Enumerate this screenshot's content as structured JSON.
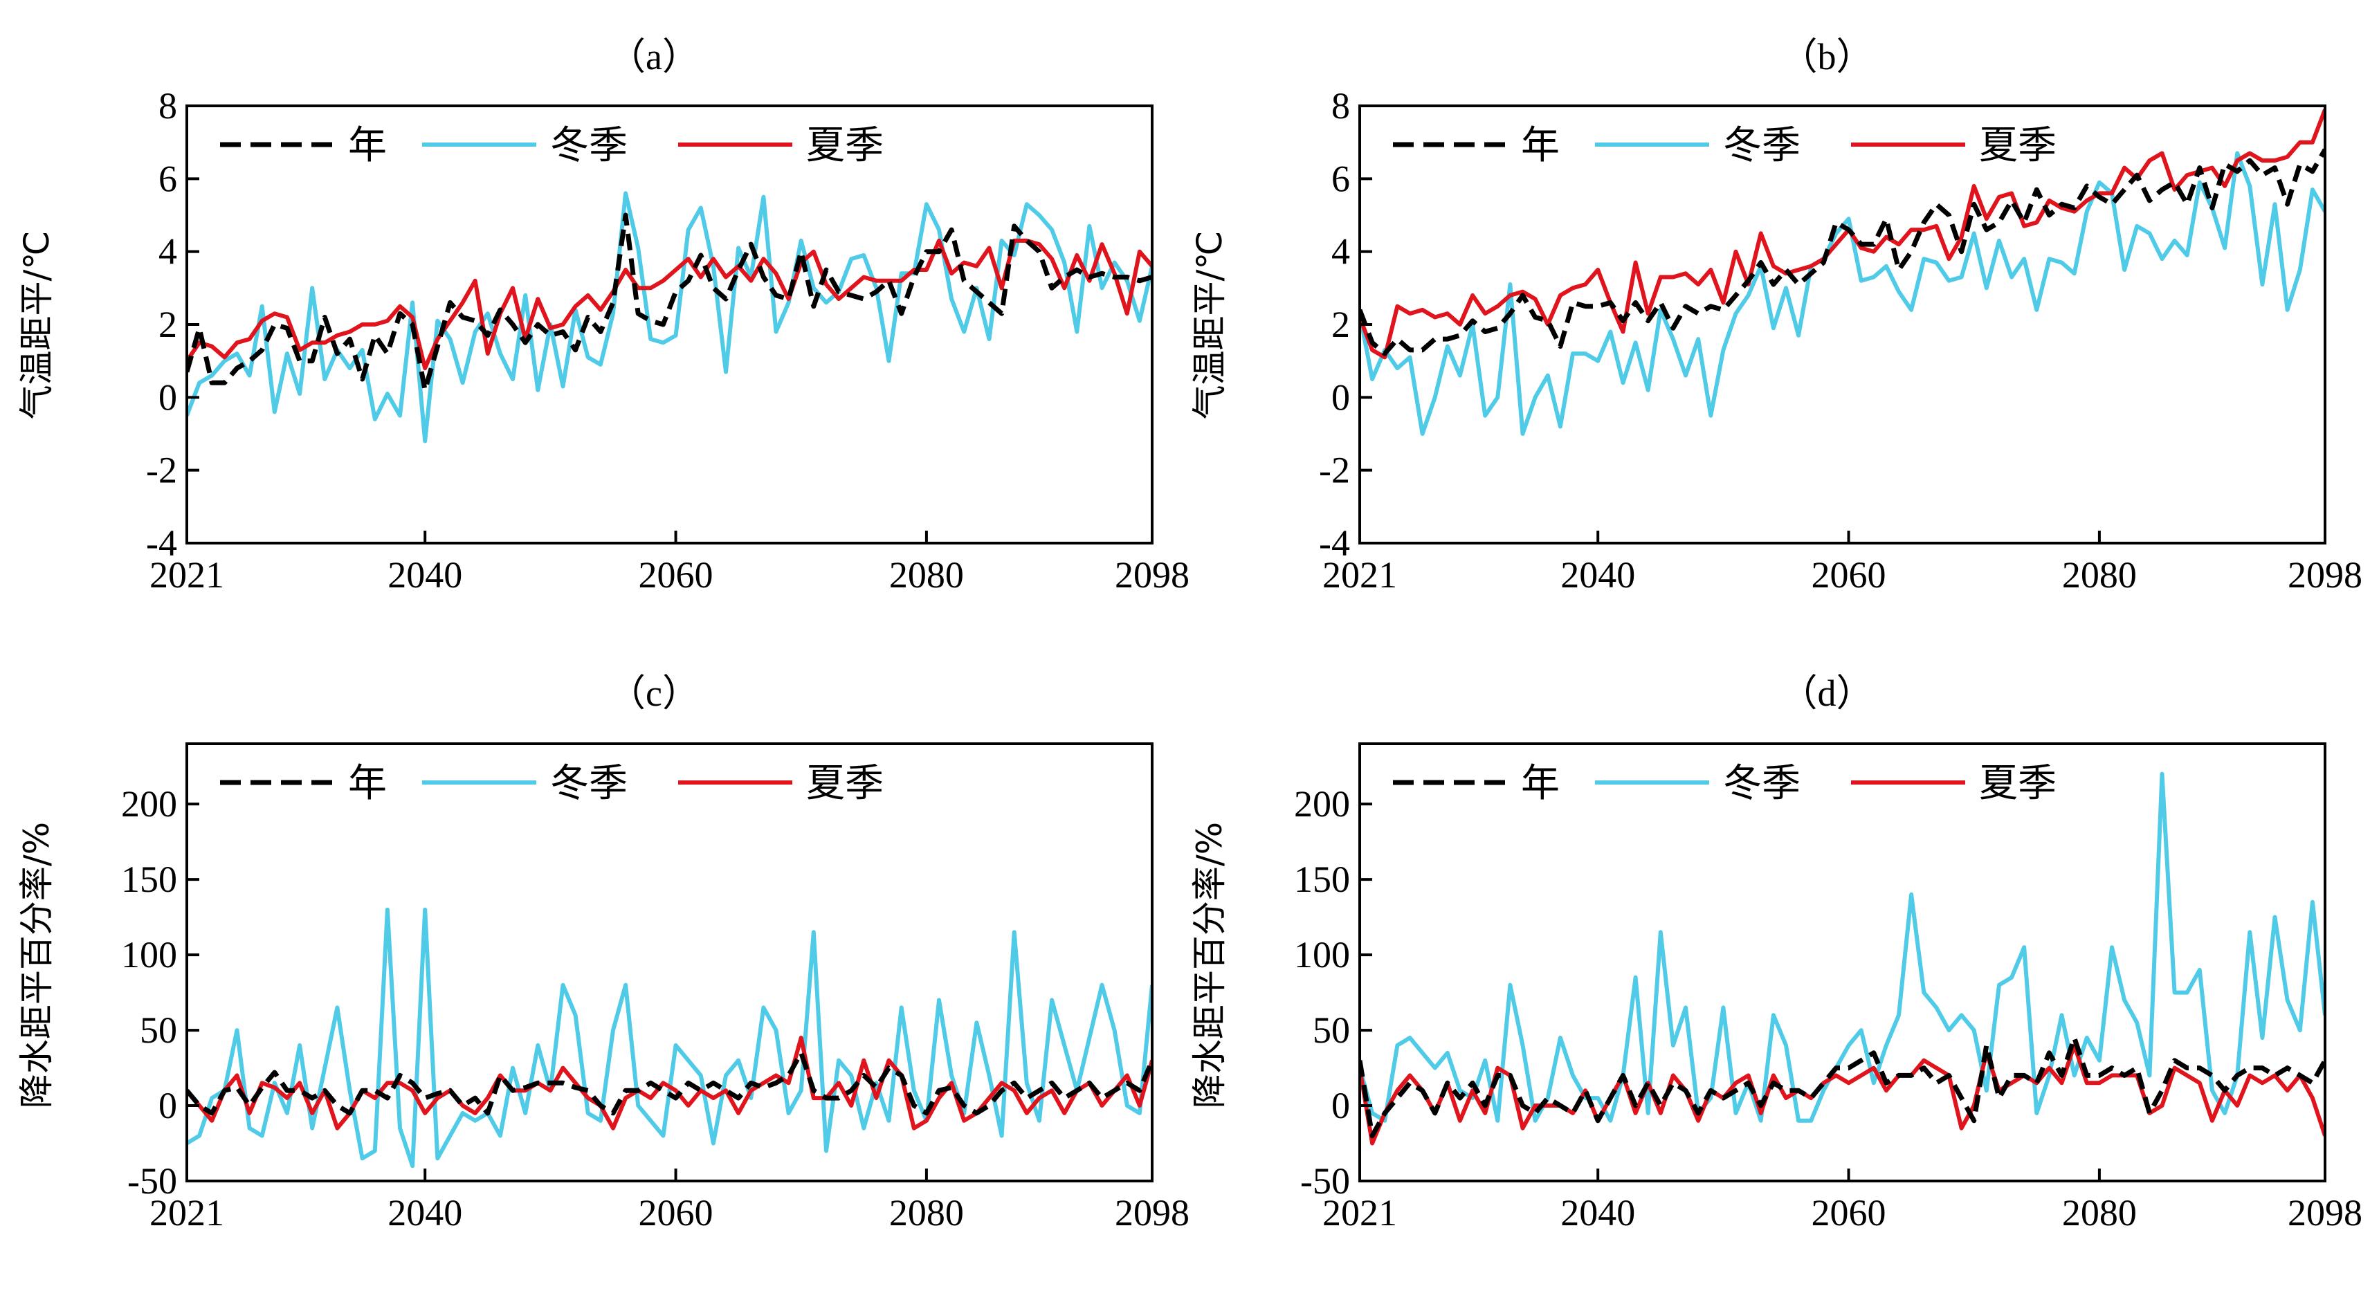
{
  "colors": {
    "annual": "#000000",
    "winter": "#4fcbe8",
    "summer": "#e0141c"
  },
  "chart_data": [
    {
      "type": "line",
      "title": "（a）",
      "ylabel": "气温距平/℃",
      "xlabel": "",
      "xlim": [
        2021,
        2098
      ],
      "ylim": [
        -4,
        8
      ],
      "xticks": [
        2021,
        2040,
        2060,
        2080,
        2098
      ],
      "yticks": [
        -4,
        -2,
        0,
        2,
        4,
        6,
        8
      ],
      "legend_position": "top-left",
      "x_start": 2021,
      "series": [
        {
          "name": "年",
          "key": "annual",
          "style": "dashed",
          "values": [
            0.7,
            1.9,
            0.4,
            0.4,
            0.8,
            1.0,
            1.3,
            2.0,
            1.9,
            1.0,
            1.0,
            2.2,
            1.2,
            1.6,
            0.5,
            1.7,
            1.2,
            2.3,
            2.0,
            0.2,
            1.4,
            2.6,
            2.2,
            2.1,
            1.7,
            2.4,
            2.0,
            1.5,
            2.0,
            1.7,
            1.8,
            1.3,
            2.2,
            1.8,
            2.6,
            5.0,
            2.3,
            2.1,
            2.0,
            2.9,
            3.2,
            3.9,
            3.0,
            2.7,
            3.5,
            4.2,
            3.3,
            2.8,
            2.7,
            4.0,
            2.5,
            3.5,
            2.9,
            2.8,
            2.7,
            2.9,
            3.2,
            2.3,
            3.3,
            4.0,
            4.0,
            4.6,
            3.2,
            2.9,
            2.6,
            2.3,
            4.7,
            4.3,
            4.0,
            3.0,
            3.3,
            3.5,
            3.3,
            3.4,
            3.3,
            3.3,
            3.2,
            3.3
          ]
        },
        {
          "name": "冬季",
          "key": "winter",
          "style": "solid",
          "values": [
            -0.5,
            0.4,
            0.6,
            1.0,
            1.2,
            0.6,
            2.5,
            -0.4,
            1.2,
            0.1,
            3.0,
            0.5,
            1.3,
            0.8,
            1.3,
            -0.6,
            0.1,
            -0.5,
            2.6,
            -1.2,
            2.1,
            1.6,
            0.4,
            1.8,
            2.3,
            1.2,
            0.5,
            2.8,
            0.2,
            2.0,
            0.3,
            2.4,
            1.1,
            0.9,
            2.3,
            5.6,
            4.1,
            1.6,
            1.5,
            1.7,
            4.6,
            5.2,
            3.6,
            0.7,
            4.1,
            3.3,
            5.5,
            1.8,
            2.6,
            4.3,
            3.0,
            2.6,
            2.9,
            3.8,
            3.9,
            3.0,
            1.0,
            3.4,
            3.4,
            5.3,
            4.6,
            2.7,
            1.8,
            3.0,
            1.6,
            4.3,
            3.9,
            5.3,
            5.0,
            4.6,
            3.7,
            1.8,
            4.7,
            3.0,
            3.7,
            3.2,
            2.1,
            3.6
          ]
        },
        {
          "name": "夏季",
          "key": "summer",
          "style": "solid",
          "values": [
            1.0,
            1.5,
            1.4,
            1.1,
            1.5,
            1.6,
            2.1,
            2.3,
            2.2,
            1.3,
            1.5,
            1.5,
            1.7,
            1.8,
            2.0,
            2.0,
            2.1,
            2.5,
            2.2,
            0.8,
            1.6,
            2.1,
            2.6,
            3.2,
            1.2,
            2.3,
            3.0,
            1.6,
            2.7,
            1.9,
            2.0,
            2.5,
            2.8,
            2.4,
            2.9,
            3.5,
            3.0,
            3.0,
            3.2,
            3.5,
            3.8,
            3.3,
            3.8,
            3.3,
            3.6,
            3.2,
            3.8,
            3.4,
            2.7,
            3.7,
            4.0,
            3.1,
            2.7,
            3.0,
            3.3,
            3.2,
            3.2,
            3.2,
            3.5,
            3.5,
            4.3,
            3.4,
            3.7,
            3.6,
            4.1,
            3.0,
            4.3,
            4.3,
            4.2,
            3.8,
            3.0,
            3.9,
            3.2,
            4.2,
            3.4,
            2.3,
            4.0,
            3.6
          ]
        }
      ]
    },
    {
      "type": "line",
      "title": "（b）",
      "ylabel": "气温距平/℃",
      "xlabel": "",
      "xlim": [
        2021,
        2098
      ],
      "ylim": [
        -4,
        8
      ],
      "xticks": [
        2021,
        2040,
        2060,
        2080,
        2098
      ],
      "yticks": [
        -4,
        -2,
        0,
        2,
        4,
        6,
        8
      ],
      "legend_position": "top-left",
      "x_start": 2021,
      "series": [
        {
          "name": "年",
          "key": "annual",
          "style": "dashed",
          "values": [
            2.4,
            1.5,
            1.2,
            1.6,
            1.3,
            1.3,
            1.6,
            1.6,
            1.7,
            2.1,
            1.8,
            1.9,
            2.3,
            2.8,
            2.2,
            2.1,
            1.4,
            2.6,
            2.5,
            2.5,
            2.6,
            2.1,
            2.6,
            2.1,
            2.6,
            1.9,
            2.5,
            2.3,
            2.5,
            2.4,
            2.8,
            3.2,
            3.7,
            3.1,
            3.5,
            3.1,
            3.4,
            3.7,
            4.8,
            4.6,
            4.2,
            4.2,
            4.9,
            3.5,
            4.0,
            4.8,
            5.3,
            5.0,
            4.0,
            5.3,
            4.6,
            4.8,
            5.4,
            4.8,
            5.7,
            5.0,
            5.3,
            5.2,
            5.8,
            5.5,
            5.3,
            5.7,
            6.1,
            5.4,
            5.7,
            5.9,
            5.3,
            6.3,
            5.2,
            6.4,
            6.2,
            6.5,
            6.1,
            6.3,
            5.3,
            6.4,
            6.2,
            6.8
          ]
        },
        {
          "name": "冬季",
          "key": "winter",
          "style": "solid",
          "values": [
            2.3,
            0.5,
            1.3,
            0.8,
            1.1,
            -1.0,
            0.0,
            1.4,
            0.6,
            2.0,
            -0.5,
            0.0,
            3.1,
            -1.0,
            0.0,
            0.6,
            -0.8,
            1.2,
            1.2,
            1.0,
            1.8,
            0.4,
            1.5,
            0.2,
            2.4,
            1.6,
            0.6,
            1.6,
            -0.5,
            1.3,
            2.3,
            2.8,
            3.6,
            1.9,
            3.0,
            1.7,
            3.6,
            3.8,
            4.5,
            4.9,
            3.2,
            3.3,
            3.6,
            2.9,
            2.4,
            3.8,
            3.7,
            3.2,
            3.3,
            4.5,
            3.0,
            4.3,
            3.3,
            3.8,
            2.4,
            3.8,
            3.7,
            3.4,
            5.1,
            5.9,
            5.6,
            3.5,
            4.7,
            4.5,
            3.8,
            4.3,
            3.9,
            5.9,
            5.2,
            4.1,
            6.7,
            5.8,
            3.1,
            5.3,
            2.4,
            3.5,
            5.7,
            5.1
          ]
        },
        {
          "name": "夏季",
          "key": "summer",
          "style": "solid",
          "values": [
            2.2,
            1.3,
            1.1,
            2.5,
            2.3,
            2.4,
            2.2,
            2.3,
            2.0,
            2.8,
            2.3,
            2.5,
            2.8,
            2.9,
            2.7,
            2.0,
            2.8,
            3.0,
            3.1,
            3.5,
            2.6,
            1.8,
            3.7,
            2.3,
            3.3,
            3.3,
            3.4,
            3.1,
            3.5,
            2.6,
            4.0,
            3.1,
            4.5,
            3.6,
            3.4,
            3.5,
            3.6,
            3.8,
            4.2,
            4.6,
            4.1,
            4.0,
            4.4,
            4.2,
            4.6,
            4.6,
            4.7,
            3.8,
            4.4,
            5.8,
            4.9,
            5.5,
            5.6,
            4.7,
            4.8,
            5.4,
            5.2,
            5.1,
            5.4,
            5.6,
            5.6,
            6.3,
            6.0,
            6.5,
            6.7,
            5.7,
            6.1,
            6.2,
            6.3,
            5.8,
            6.5,
            6.7,
            6.5,
            6.5,
            6.6,
            7.0,
            7.0,
            7.9
          ]
        }
      ]
    },
    {
      "type": "line",
      "title": "（c）",
      "ylabel": "降水距平百分率/%",
      "xlabel": "",
      "xlim": [
        2021,
        2098
      ],
      "ylim": [
        -50,
        240
      ],
      "xticks": [
        2021,
        2040,
        2060,
        2080,
        2098
      ],
      "yticks": [
        -50,
        0,
        50,
        100,
        150,
        200
      ],
      "legend_position": "top-left",
      "x_start": 2021,
      "series": [
        {
          "name": "年",
          "key": "annual",
          "style": "dashed",
          "values": [
            10,
            0,
            -5,
            10,
            12,
            0,
            12,
            22,
            10,
            10,
            5,
            10,
            0,
            -5,
            10,
            10,
            5,
            20,
            15,
            5,
            8,
            10,
            0,
            5,
            -5,
            20,
            10,
            12,
            15,
            15,
            15,
            12,
            10,
            0,
            -5,
            10,
            10,
            15,
            10,
            5,
            15,
            10,
            15,
            10,
            5,
            15,
            12,
            15,
            20,
            35,
            10,
            5,
            5,
            10,
            20,
            12,
            25,
            20,
            0,
            -5,
            10,
            12,
            0,
            -5,
            0,
            10,
            15,
            5,
            10,
            15,
            5,
            10,
            15,
            5,
            10,
            15,
            10,
            30
          ]
        },
        {
          "name": "冬季",
          "key": "winter",
          "style": "solid",
          "values": [
            -25,
            -20,
            5,
            10,
            50,
            -15,
            -20,
            15,
            -5,
            40,
            -15,
            25,
            65,
            10,
            -35,
            -30,
            130,
            -15,
            -40,
            130,
            -35,
            -20,
            -5,
            -10,
            -5,
            -20,
            25,
            -5,
            40,
            10,
            80,
            60,
            -5,
            -10,
            50,
            80,
            0,
            -10,
            -20,
            40,
            30,
            20,
            -25,
            20,
            30,
            5,
            65,
            50,
            -5,
            10,
            115,
            -30,
            30,
            20,
            -15,
            15,
            -10,
            65,
            10,
            -10,
            70,
            20,
            -5,
            55,
            20,
            -20,
            115,
            15,
            -10,
            70,
            40,
            10,
            45,
            80,
            50,
            0,
            -5,
            80
          ]
        },
        {
          "name": "夏季",
          "key": "summer",
          "style": "solid",
          "values": [
            10,
            0,
            -10,
            10,
            20,
            -5,
            15,
            12,
            5,
            15,
            -5,
            10,
            -15,
            -5,
            10,
            5,
            15,
            15,
            10,
            -5,
            5,
            10,
            0,
            -5,
            5,
            20,
            10,
            10,
            15,
            10,
            25,
            15,
            5,
            0,
            -15,
            5,
            10,
            5,
            15,
            10,
            0,
            10,
            5,
            10,
            -5,
            10,
            15,
            20,
            15,
            45,
            5,
            5,
            15,
            0,
            30,
            5,
            30,
            20,
            -15,
            -10,
            5,
            15,
            -10,
            -5,
            5,
            15,
            10,
            -5,
            5,
            10,
            -5,
            10,
            15,
            0,
            10,
            20,
            0,
            30
          ]
        }
      ]
    },
    {
      "type": "line",
      "title": "（d）",
      "ylabel": "降水距平百分率/%",
      "xlabel": "",
      "xlim": [
        2021,
        2098
      ],
      "ylim": [
        -50,
        240
      ],
      "xticks": [
        2021,
        2040,
        2060,
        2080,
        2098
      ],
      "yticks": [
        -50,
        0,
        50,
        100,
        150,
        200
      ],
      "legend_position": "top-left",
      "x_start": 2021,
      "series": [
        {
          "name": "年",
          "key": "annual",
          "style": "dashed",
          "values": [
            30,
            -20,
            -5,
            5,
            15,
            10,
            -5,
            15,
            5,
            15,
            0,
            20,
            20,
            0,
            -5,
            5,
            0,
            -5,
            10,
            -10,
            5,
            20,
            0,
            15,
            0,
            15,
            10,
            -5,
            10,
            5,
            10,
            15,
            0,
            15,
            10,
            10,
            5,
            15,
            25,
            25,
            30,
            35,
            15,
            20,
            20,
            25,
            15,
            20,
            5,
            -10,
            40,
            5,
            20,
            20,
            15,
            35,
            20,
            45,
            20,
            20,
            25,
            20,
            25,
            -5,
            10,
            30,
            25,
            25,
            20,
            10,
            20,
            25,
            25,
            20,
            25,
            20,
            15,
            30
          ]
        },
        {
          "name": "冬季",
          "key": "winter",
          "style": "solid",
          "values": [
            25,
            -5,
            -10,
            40,
            45,
            35,
            25,
            35,
            10,
            5,
            30,
            -10,
            80,
            40,
            -10,
            5,
            45,
            20,
            5,
            5,
            -10,
            20,
            85,
            -5,
            115,
            40,
            65,
            -5,
            5,
            65,
            -5,
            15,
            -10,
            60,
            40,
            -10,
            -10,
            10,
            25,
            40,
            50,
            15,
            40,
            60,
            140,
            75,
            65,
            50,
            60,
            50,
            10,
            80,
            85,
            105,
            -5,
            20,
            60,
            20,
            45,
            30,
            105,
            70,
            55,
            20,
            220,
            75,
            75,
            90,
            10,
            -5,
            20,
            115,
            45,
            125,
            70,
            50,
            135,
            60
          ]
        },
        {
          "name": "夏季",
          "key": "summer",
          "style": "solid",
          "values": [
            25,
            -25,
            -5,
            10,
            20,
            10,
            -5,
            15,
            -10,
            10,
            -5,
            25,
            20,
            -15,
            0,
            0,
            0,
            -5,
            10,
            -10,
            5,
            20,
            -5,
            15,
            -5,
            20,
            10,
            -10,
            10,
            5,
            15,
            20,
            -5,
            20,
            5,
            10,
            5,
            15,
            20,
            15,
            20,
            25,
            10,
            20,
            20,
            30,
            25,
            20,
            -15,
            0,
            35,
            10,
            15,
            20,
            15,
            25,
            15,
            40,
            15,
            15,
            20,
            20,
            20,
            -5,
            0,
            25,
            20,
            15,
            -10,
            10,
            0,
            20,
            15,
            20,
            10,
            20,
            5,
            -20
          ]
        }
      ]
    }
  ]
}
